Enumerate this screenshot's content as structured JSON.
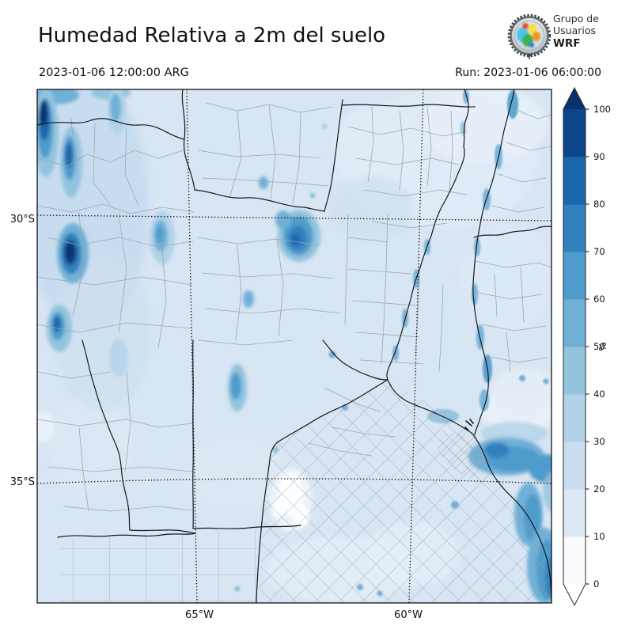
{
  "header": {
    "title": "Humedad Relativa a 2m del suelo",
    "valid_time": "2023-01-06 12:00:00 ARG",
    "run_label": "Run: 2023-01-06 06:00:00"
  },
  "logo": {
    "line1": "Grupo de",
    "line2": "Usuarios",
    "line3": "WRF"
  },
  "map": {
    "lat_labels": [
      {
        "text": "30°S"
      },
      {
        "text": "35°S"
      }
    ],
    "lon_labels": [
      {
        "text": "65°W"
      },
      {
        "text": "60°W"
      }
    ]
  },
  "colorbar": {
    "unit_label": "%",
    "ticks": [
      0,
      10,
      20,
      30,
      40,
      50,
      60,
      70,
      80,
      90,
      100
    ],
    "segment_colors_bottom_to_top": [
      "#f9fbfe",
      "#dde9f5",
      "#cbdeef",
      "#b2d2e8",
      "#93c4de",
      "#6fb0d7",
      "#4f9bcc",
      "#3181bd",
      "#1b67ad",
      "#0c4489"
    ],
    "over_color": "#08306b",
    "under_color": "#ffffff",
    "extend": "both"
  },
  "chart_data": {
    "type": "heatmap",
    "title": "Humedad Relativa a 2m del suelo",
    "valid_time": "2023-01-06 12:00:00 ARG",
    "run_time": "Run: 2023-01-06 06:00:00",
    "units": "%",
    "scale_ticks": [
      0,
      10,
      20,
      30,
      40,
      50,
      60,
      70,
      80,
      90,
      100
    ],
    "lat_gridlines": [
      "30°S",
      "35°S"
    ],
    "lon_gridlines": [
      "65°W",
      "60°W"
    ],
    "legend_position": "right",
    "notes": "Relative humidity field over central-northern Argentina; background mostly 20-30%, Andes NW ridges up to 100%, Rio de la Plata estuary and Atlantic coast 50-70%, small <10% white patches in Buenos Aires province"
  }
}
